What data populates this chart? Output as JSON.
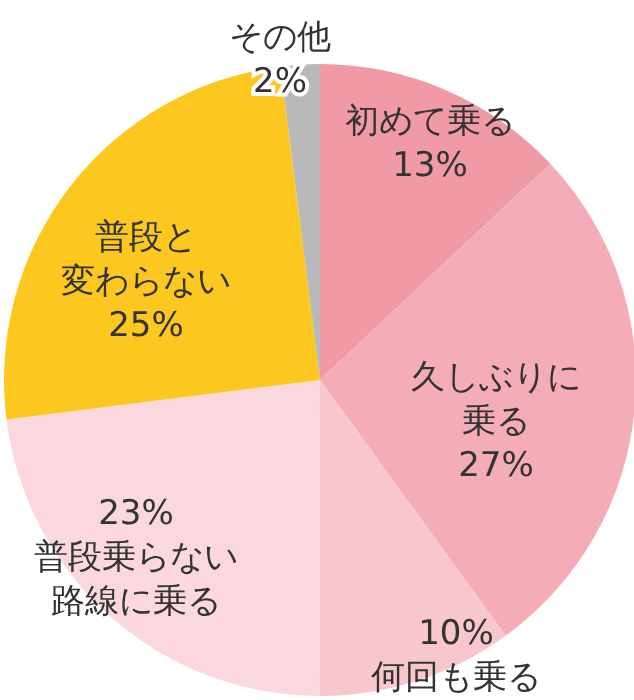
{
  "chart_data": {
    "type": "pie",
    "categories": [
      "初めて乗る",
      "久しぶりに乗る",
      "何回も乗る",
      "普段乗らない路線に乗る",
      "普段と変わらない",
      "その他"
    ],
    "values": [
      13,
      27,
      10,
      23,
      25,
      2
    ],
    "colors": [
      "#f09aa5",
      "#f4adb7",
      "#f8c6cd",
      "#fad8dd",
      "#fcc820",
      "#b8b9bb"
    ],
    "value_labels": [
      "13%",
      "27%",
      "10%",
      "23%",
      "25%",
      "2%"
    ]
  }
}
